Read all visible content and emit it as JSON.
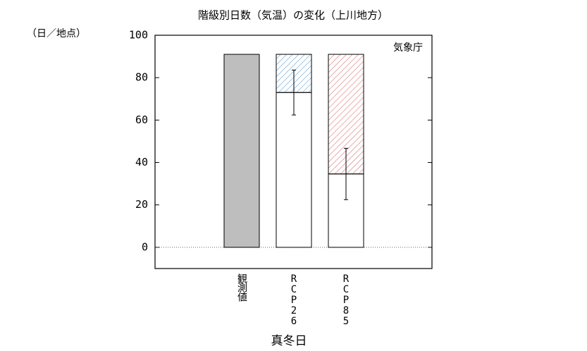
{
  "chart_data": {
    "type": "stacked-bar",
    "title": "階級別日数（気温）の変化（上川地方）",
    "y_unit_label": "（日／地点）",
    "x_label": "真冬日",
    "annotation": "気象庁",
    "categories": [
      "観測値",
      "RCP26",
      "RCP85"
    ],
    "series": [
      {
        "color": "#bebebe",
        "values": [
          91,
          null,
          null
        ]
      },
      {
        "color": "#ffffff",
        "values": [
          null,
          73,
          34.6
        ],
        "errors": [
          null,
          10.6,
          12.1
        ]
      },
      {
        "fill": "hatch",
        "colors": [
          null,
          "#5a9ac8",
          "#d05a5a"
        ],
        "values": [
          null,
          18,
          56.4
        ]
      }
    ],
    "ylim": [
      -10,
      100
    ],
    "yticks": [
      0,
      20,
      40,
      60,
      80,
      100
    ],
    "zero_line": true
  }
}
